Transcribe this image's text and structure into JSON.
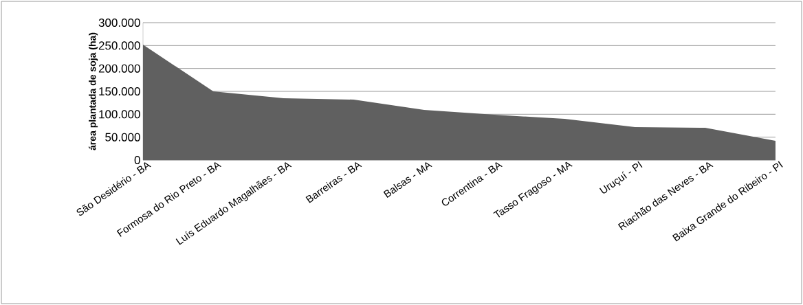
{
  "chart_data": {
    "type": "area",
    "ylabel": "área plantada de soja (ha)",
    "categories": [
      "São Desidério - BA",
      "Formosa do Rio Preto - BA",
      "Luís Eduardo Magalhães - BA",
      "Barreiras - BA",
      "Balsas - MA",
      "Correntina - BA",
      "Tasso Fragoso - MA",
      "Uruçuí - PI",
      "Riachão das Neves - BA",
      "Baixa Grande do Ribeiro - PI"
    ],
    "values": [
      252000,
      150000,
      135000,
      132000,
      109500,
      99000,
      90000,
      72000,
      70500,
      42000
    ],
    "color": "#606060",
    "ylim": [
      0,
      300000
    ],
    "yticks": [
      0,
      {
        "value": 50000,
        "label": "50.000"
      },
      {
        "value": 100000,
        "label": "100.000"
      },
      {
        "value": 150000,
        "label": "150.000"
      },
      {
        "value": 200000,
        "label": "200.000"
      },
      {
        "value": 250000,
        "label": "250.000"
      },
      {
        "value": 300000,
        "label": "300.000"
      }
    ],
    "grid": "y"
  }
}
